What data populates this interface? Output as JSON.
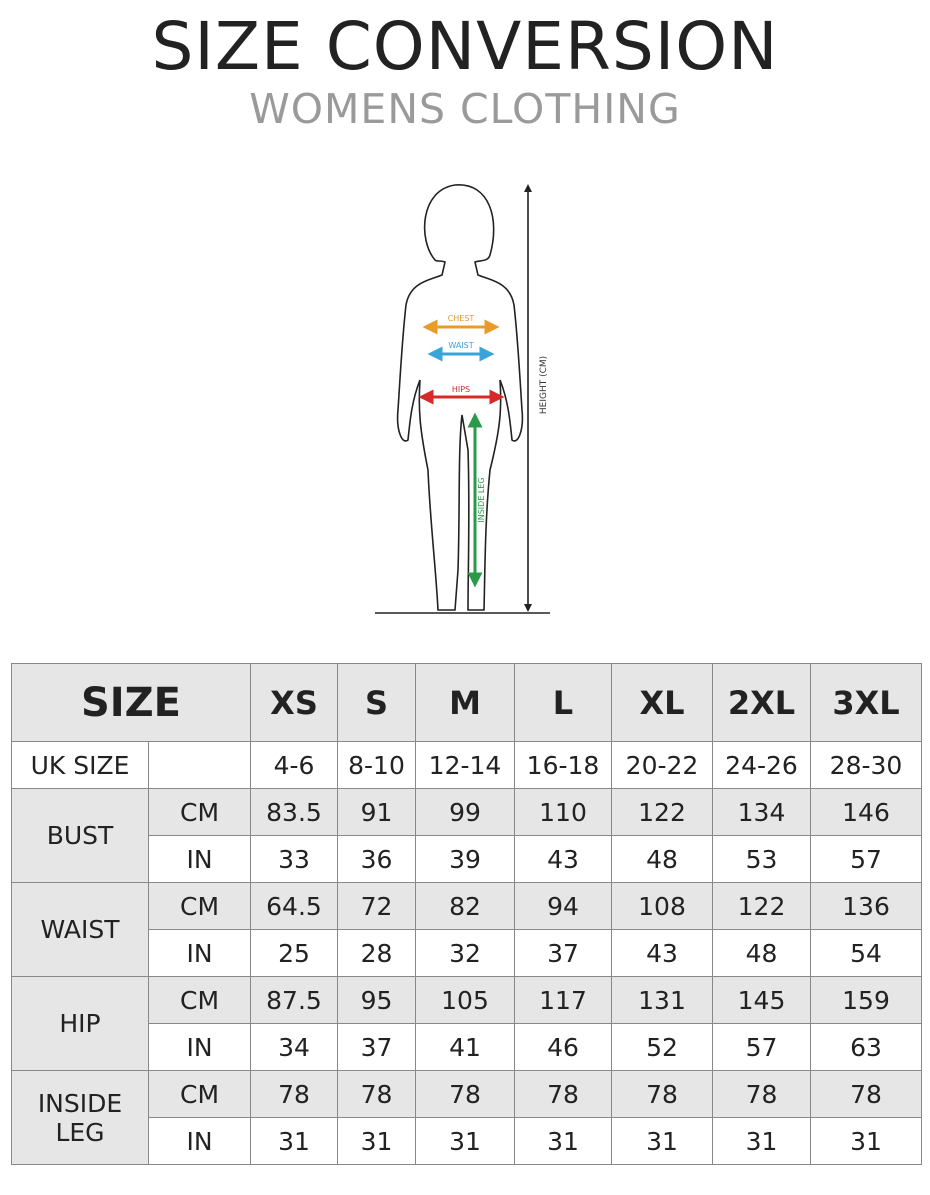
{
  "header": {
    "title": "SIZE CONVERSION",
    "subtitle": "WOMENS CLOTHING"
  },
  "figure": {
    "labels": {
      "chest": "CHEST",
      "waist": "WAIST",
      "hips": "HIPS",
      "inside_leg": "INSIDE LEG",
      "height": "HEIGHT (CM)"
    },
    "colors": {
      "chest": "#e89a2a",
      "waist": "#3aa3d8",
      "hips": "#d42a2a",
      "inside_leg": "#2a9a4a",
      "outline": "#222222"
    }
  },
  "table": {
    "size_label": "SIZE",
    "sizes": [
      "XS",
      "S",
      "M",
      "L",
      "XL",
      "2XL",
      "3XL"
    ],
    "uk_size": {
      "label": "UK SIZE",
      "values": [
        "4-6",
        "8-10",
        "12-14",
        "16-18",
        "20-22",
        "24-26",
        "28-30"
      ]
    },
    "groups": [
      {
        "label": "BUST",
        "cm_label": "CM",
        "in_label": "IN",
        "cm": [
          "83.5",
          "91",
          "99",
          "110",
          "122",
          "134",
          "146"
        ],
        "in": [
          "33",
          "36",
          "39",
          "43",
          "48",
          "53",
          "57"
        ]
      },
      {
        "label": "WAIST",
        "cm_label": "CM",
        "in_label": "IN",
        "cm": [
          "64.5",
          "72",
          "82",
          "94",
          "108",
          "122",
          "136"
        ],
        "in": [
          "25",
          "28",
          "32",
          "37",
          "43",
          "48",
          "54"
        ]
      },
      {
        "label": "HIP",
        "cm_label": "CM",
        "in_label": "IN",
        "cm": [
          "87.5",
          "95",
          "105",
          "117",
          "131",
          "145",
          "159"
        ],
        "in": [
          "34",
          "37",
          "41",
          "46",
          "52",
          "57",
          "63"
        ]
      },
      {
        "label": "INSIDE LEG",
        "cm_label": "CM",
        "in_label": "IN",
        "cm": [
          "78",
          "78",
          "78",
          "78",
          "78",
          "78",
          "78"
        ],
        "in": [
          "31",
          "31",
          "31",
          "31",
          "31",
          "31",
          "31"
        ]
      }
    ]
  }
}
